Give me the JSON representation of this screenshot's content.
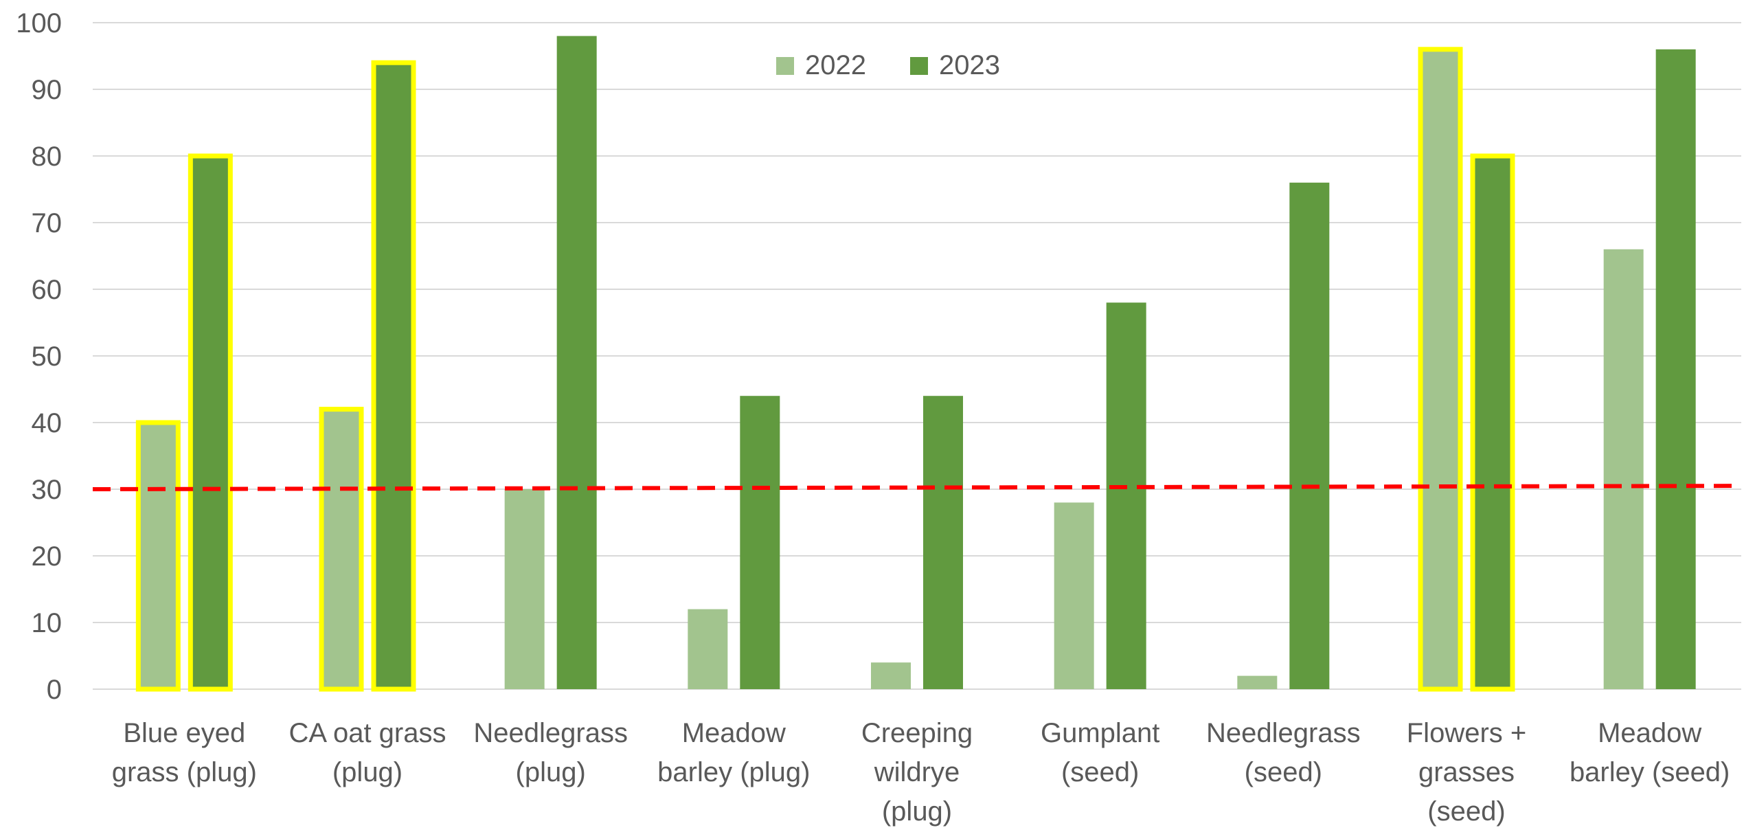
{
  "chart_data": {
    "type": "bar",
    "title": "",
    "xlabel": "",
    "ylabel": "",
    "ylim": [
      0,
      100
    ],
    "yticks": [
      "0",
      "10",
      "20",
      "30",
      "40",
      "50",
      "60",
      "70",
      "80",
      "90",
      "100"
    ],
    "grid": true,
    "legend": "top-center",
    "categories": [
      [
        "Blue eyed",
        "grass (plug)"
      ],
      [
        "CA oat grass",
        "(plug)"
      ],
      [
        "Needlegrass",
        "(plug)"
      ],
      [
        "Meadow",
        "barley (plug)"
      ],
      [
        "Creeping",
        "wildrye",
        "(plug)"
      ],
      [
        "Gumplant",
        "(seed)"
      ],
      [
        "Needlegrass",
        "(seed)"
      ],
      [
        "Flowers +",
        "grasses",
        "(seed)"
      ],
      [
        "Meadow",
        "barley (seed)"
      ]
    ],
    "series": [
      {
        "name": "2022",
        "color": "#a2c48e",
        "values": [
          40,
          42,
          30,
          12,
          4,
          28,
          2,
          96,
          66
        ]
      },
      {
        "name": "2023",
        "color": "#619a3f",
        "values": [
          80,
          94,
          98,
          44,
          44,
          58,
          76,
          80,
          96
        ]
      }
    ],
    "highlighted": [
      {
        "series": 0,
        "index": 0
      },
      {
        "series": 1,
        "index": 0
      },
      {
        "series": 0,
        "index": 1
      },
      {
        "series": 1,
        "index": 1
      },
      {
        "series": 0,
        "index": 7
      },
      {
        "series": 1,
        "index": 7
      }
    ],
    "highlight_color": "#ffff00",
    "reference_line": {
      "y_start": 30,
      "y_end": 30.5,
      "color": "#ff0000",
      "style": "dashed"
    }
  }
}
